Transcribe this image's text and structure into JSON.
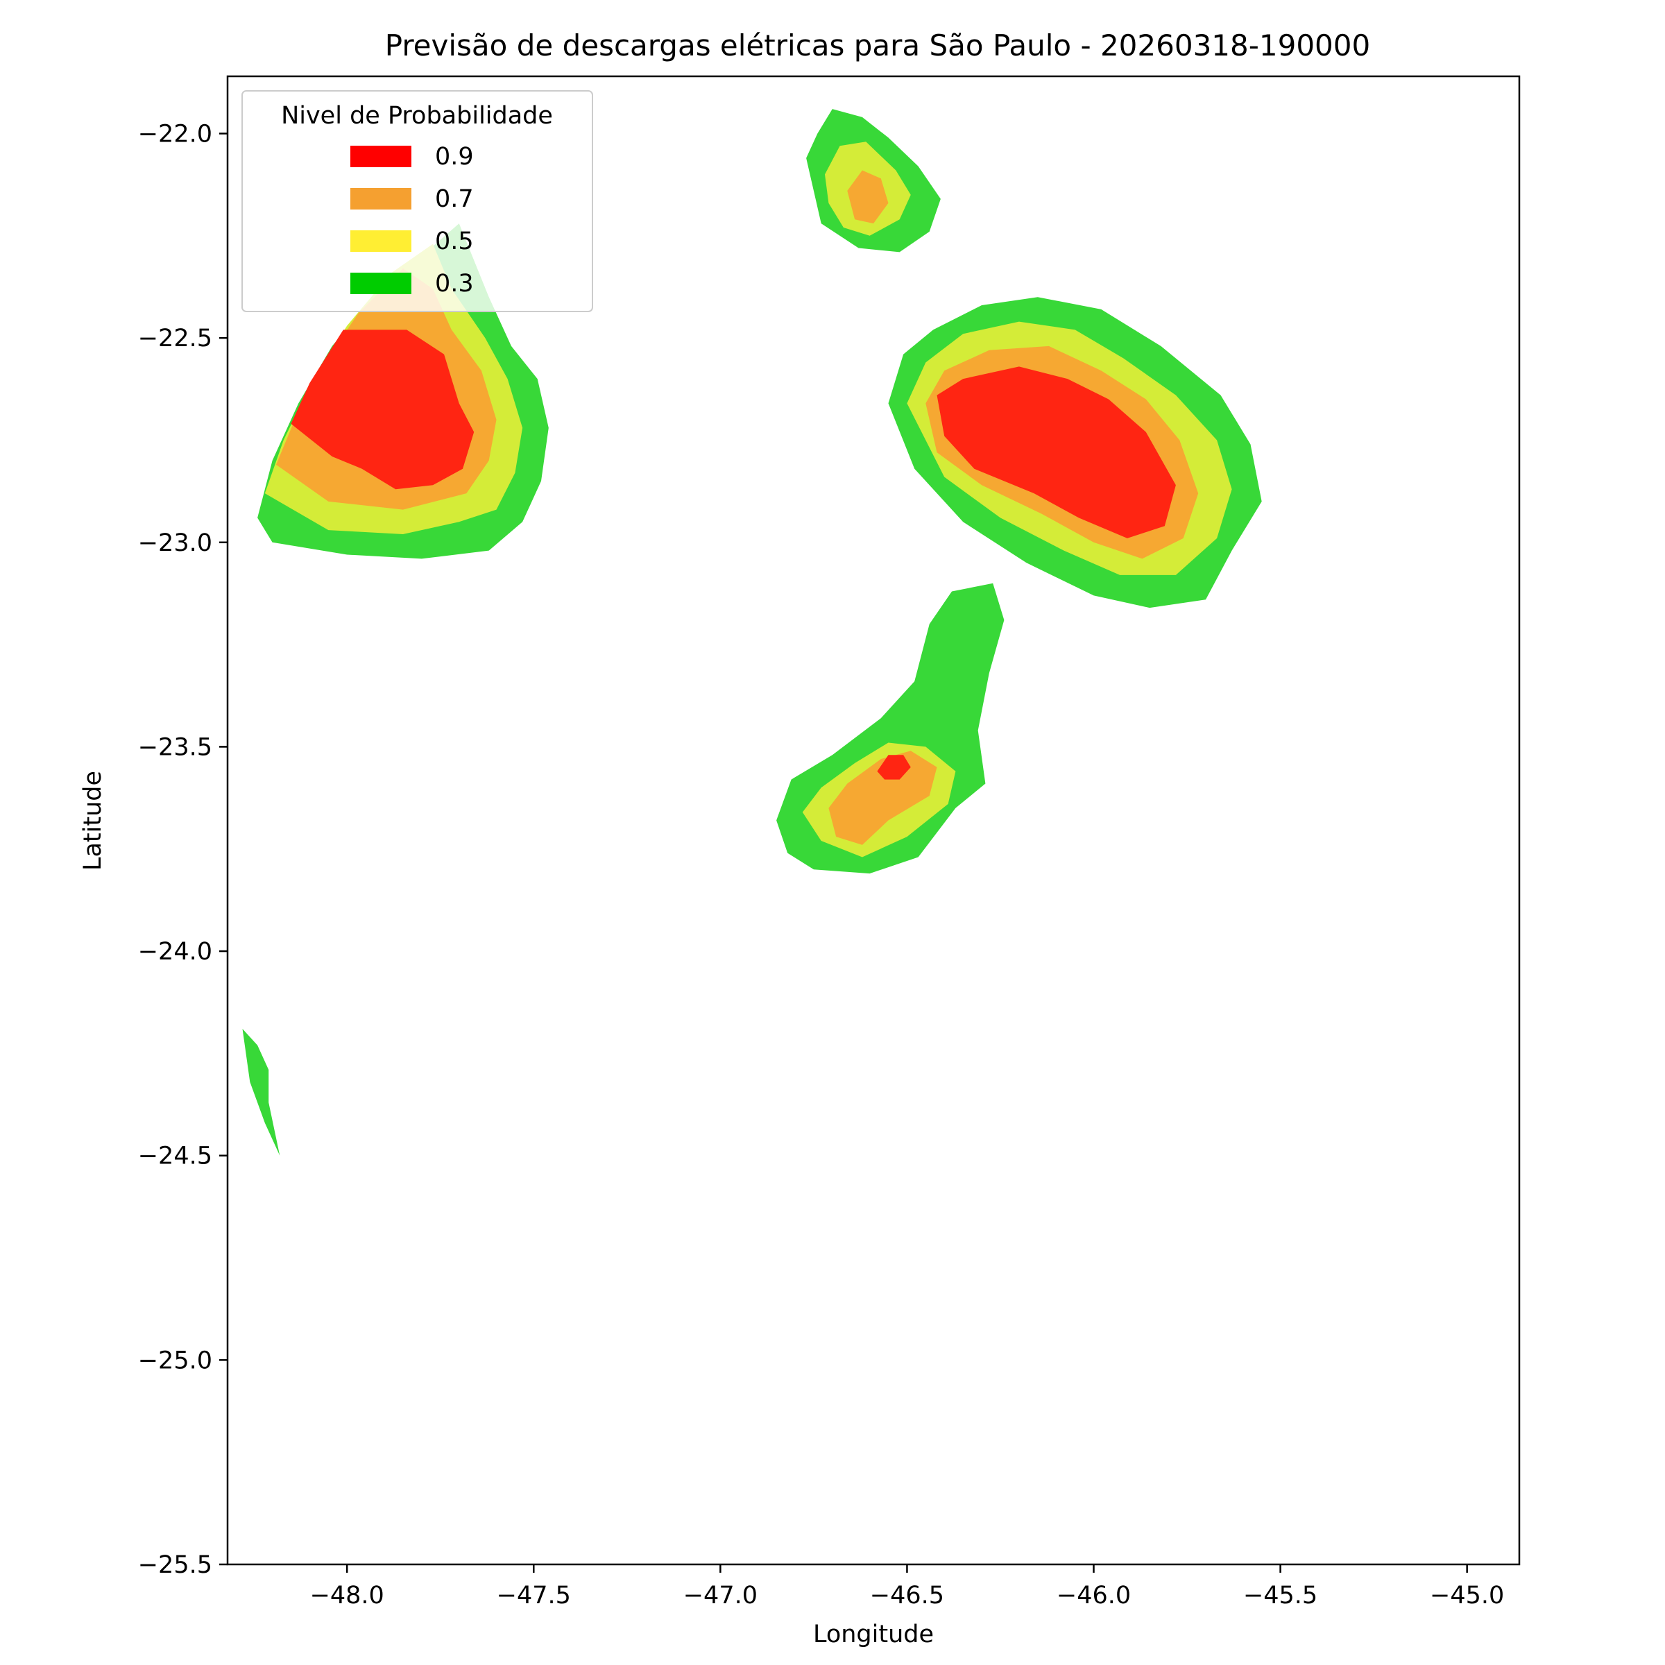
{
  "chart_data": {
    "type": "filled-contour map",
    "title": "Previsão de descargas elétricas para São Paulo - 20260318-190000",
    "xlabel": "Longitude",
    "ylabel": "Latitude",
    "xlim": [
      -48.32,
      -44.86
    ],
    "ylim": [
      -25.5,
      -21.86
    ],
    "xticks": [
      -48.0,
      -47.5,
      -47.0,
      -46.5,
      -46.0,
      -45.5,
      -45.0
    ],
    "xtick_labels": [
      "−48.0",
      "−47.5",
      "−47.0",
      "−46.5",
      "−46.0",
      "−45.5",
      "−45.0"
    ],
    "yticks": [
      -22.0,
      -22.5,
      -23.0,
      -23.5,
      -24.0,
      -24.5,
      -25.0,
      -25.5
    ],
    "ytick_labels": [
      "−22.0",
      "−22.5",
      "−23.0",
      "−23.5",
      "−24.0",
      "−24.5",
      "−25.0",
      "−25.5"
    ],
    "grid": false,
    "legend": {
      "title": "Nivel de Probabilidade",
      "placement": "top-left",
      "entries": [
        {
          "label": "0.9",
          "color": "#ff0000"
        },
        {
          "label": "0.7",
          "color": "#f5a030"
        },
        {
          "label": "0.5",
          "color": "#ffee33"
        },
        {
          "label": "0.3",
          "color": "#00cc00"
        }
      ]
    },
    "fill_colors": {
      "0.3": "#38d838",
      "0.5": "#d4ec38",
      "0.7": "#f6a832",
      "0.9": "#ff2512"
    },
    "regions": [
      {
        "id": "west-cell",
        "levels": [
          {
            "level": 0.3,
            "polygon": [
              [
                -48.24,
                -22.94
              ],
              [
                -48.2,
                -22.8
              ],
              [
                -48.13,
                -22.66
              ],
              [
                -48.04,
                -22.52
              ],
              [
                -47.93,
                -22.4
              ],
              [
                -47.8,
                -22.3
              ],
              [
                -47.7,
                -22.22
              ],
              [
                -47.62,
                -22.4
              ],
              [
                -47.56,
                -22.52
              ],
              [
                -47.49,
                -22.6
              ],
              [
                -47.46,
                -22.72
              ],
              [
                -47.48,
                -22.85
              ],
              [
                -47.53,
                -22.95
              ],
              [
                -47.62,
                -23.02
              ],
              [
                -47.8,
                -23.04
              ],
              [
                -48.0,
                -23.03
              ],
              [
                -48.2,
                -23.0
              ]
            ]
          },
          {
            "level": 0.5,
            "polygon": [
              [
                -48.22,
                -22.88
              ],
              [
                -48.17,
                -22.75
              ],
              [
                -48.09,
                -22.6
              ],
              [
                -48.0,
                -22.47
              ],
              [
                -47.88,
                -22.34
              ],
              [
                -47.77,
                -22.27
              ],
              [
                -47.72,
                -22.38
              ],
              [
                -47.63,
                -22.5
              ],
              [
                -47.57,
                -22.6
              ],
              [
                -47.53,
                -22.72
              ],
              [
                -47.55,
                -22.83
              ],
              [
                -47.6,
                -22.92
              ],
              [
                -47.7,
                -22.95
              ],
              [
                -47.85,
                -22.98
              ],
              [
                -48.05,
                -22.97
              ]
            ]
          },
          {
            "level": 0.7,
            "polygon": [
              [
                -48.19,
                -22.81
              ],
              [
                -48.14,
                -22.7
              ],
              [
                -48.06,
                -22.56
              ],
              [
                -47.97,
                -22.44
              ],
              [
                -47.85,
                -22.33
              ],
              [
                -47.77,
                -22.38
              ],
              [
                -47.72,
                -22.48
              ],
              [
                -47.64,
                -22.58
              ],
              [
                -47.6,
                -22.7
              ],
              [
                -47.62,
                -22.8
              ],
              [
                -47.68,
                -22.88
              ],
              [
                -47.85,
                -22.92
              ],
              [
                -48.05,
                -22.9
              ]
            ]
          },
          {
            "level": 0.9,
            "polygon": [
              [
                -48.15,
                -22.71
              ],
              [
                -48.1,
                -22.61
              ],
              [
                -48.01,
                -22.48
              ],
              [
                -47.84,
                -22.48
              ],
              [
                -47.74,
                -22.54
              ],
              [
                -47.7,
                -22.66
              ],
              [
                -47.66,
                -22.73
              ],
              [
                -47.69,
                -22.82
              ],
              [
                -47.77,
                -22.86
              ],
              [
                -47.87,
                -22.87
              ],
              [
                -47.96,
                -22.82
              ],
              [
                -48.04,
                -22.79
              ]
            ]
          }
        ]
      },
      {
        "id": "north-cell",
        "levels": [
          {
            "level": 0.3,
            "polygon": [
              [
                -46.77,
                -22.06
              ],
              [
                -46.74,
                -22.0
              ],
              [
                -46.7,
                -21.94
              ],
              [
                -46.62,
                -21.96
              ],
              [
                -46.55,
                -22.01
              ],
              [
                -46.47,
                -22.08
              ],
              [
                -46.41,
                -22.16
              ],
              [
                -46.44,
                -22.24
              ],
              [
                -46.52,
                -22.29
              ],
              [
                -46.63,
                -22.28
              ],
              [
                -46.73,
                -22.22
              ],
              [
                -46.75,
                -22.14
              ]
            ]
          },
          {
            "level": 0.5,
            "polygon": [
              [
                -46.72,
                -22.1
              ],
              [
                -46.68,
                -22.03
              ],
              [
                -46.61,
                -22.02
              ],
              [
                -46.53,
                -22.09
              ],
              [
                -46.49,
                -22.15
              ],
              [
                -46.52,
                -22.21
              ],
              [
                -46.6,
                -22.25
              ],
              [
                -46.67,
                -22.23
              ],
              [
                -46.71,
                -22.17
              ]
            ]
          },
          {
            "level": 0.7,
            "polygon": [
              [
                -46.66,
                -22.14
              ],
              [
                -46.62,
                -22.09
              ],
              [
                -46.57,
                -22.11
              ],
              [
                -46.55,
                -22.17
              ],
              [
                -46.59,
                -22.22
              ],
              [
                -46.64,
                -22.21
              ]
            ]
          }
        ]
      },
      {
        "id": "east-cell",
        "levels": [
          {
            "level": 0.3,
            "polygon": [
              [
                -46.55,
                -22.66
              ],
              [
                -46.51,
                -22.54
              ],
              [
                -46.43,
                -22.48
              ],
              [
                -46.3,
                -22.42
              ],
              [
                -46.15,
                -22.4
              ],
              [
                -45.98,
                -22.43
              ],
              [
                -45.82,
                -22.52
              ],
              [
                -45.66,
                -22.64
              ],
              [
                -45.58,
                -22.76
              ],
              [
                -45.55,
                -22.9
              ],
              [
                -45.63,
                -23.02
              ],
              [
                -45.7,
                -23.14
              ],
              [
                -45.85,
                -23.16
              ],
              [
                -46.0,
                -23.13
              ],
              [
                -46.18,
                -23.05
              ],
              [
                -46.35,
                -22.95
              ],
              [
                -46.48,
                -22.82
              ]
            ]
          },
          {
            "level": 0.5,
            "polygon": [
              [
                -46.5,
                -22.66
              ],
              [
                -46.45,
                -22.56
              ],
              [
                -46.35,
                -22.49
              ],
              [
                -46.2,
                -22.46
              ],
              [
                -46.05,
                -22.48
              ],
              [
                -45.92,
                -22.55
              ],
              [
                -45.78,
                -22.64
              ],
              [
                -45.67,
                -22.75
              ],
              [
                -45.63,
                -22.87
              ],
              [
                -45.67,
                -22.99
              ],
              [
                -45.78,
                -23.08
              ],
              [
                -45.93,
                -23.08
              ],
              [
                -46.08,
                -23.02
              ],
              [
                -46.25,
                -22.94
              ],
              [
                -46.4,
                -22.84
              ]
            ]
          },
          {
            "level": 0.7,
            "polygon": [
              [
                -46.45,
                -22.66
              ],
              [
                -46.4,
                -22.58
              ],
              [
                -46.28,
                -22.53
              ],
              [
                -46.12,
                -22.52
              ],
              [
                -45.98,
                -22.58
              ],
              [
                -45.86,
                -22.65
              ],
              [
                -45.77,
                -22.75
              ],
              [
                -45.72,
                -22.88
              ],
              [
                -45.76,
                -22.99
              ],
              [
                -45.87,
                -23.04
              ],
              [
                -46.0,
                -23.0
              ],
              [
                -46.14,
                -22.93
              ],
              [
                -46.3,
                -22.86
              ],
              [
                -46.42,
                -22.78
              ]
            ]
          },
          {
            "level": 0.9,
            "polygon": [
              [
                -46.42,
                -22.64
              ],
              [
                -46.35,
                -22.6
              ],
              [
                -46.2,
                -22.57
              ],
              [
                -46.07,
                -22.6
              ],
              [
                -45.96,
                -22.65
              ],
              [
                -45.86,
                -22.73
              ],
              [
                -45.78,
                -22.86
              ],
              [
                -45.81,
                -22.96
              ],
              [
                -45.91,
                -22.99
              ],
              [
                -46.04,
                -22.94
              ],
              [
                -46.16,
                -22.88
              ],
              [
                -46.32,
                -22.82
              ],
              [
                -46.4,
                -22.74
              ]
            ]
          }
        ]
      },
      {
        "id": "south-cell",
        "levels": [
          {
            "level": 0.3,
            "polygon": [
              [
                -46.85,
                -23.68
              ],
              [
                -46.81,
                -23.58
              ],
              [
                -46.7,
                -23.52
              ],
              [
                -46.57,
                -23.43
              ],
              [
                -46.48,
                -23.34
              ],
              [
                -46.44,
                -23.2
              ],
              [
                -46.38,
                -23.12
              ],
              [
                -46.27,
                -23.1
              ],
              [
                -46.24,
                -23.19
              ],
              [
                -46.28,
                -23.32
              ],
              [
                -46.31,
                -23.46
              ],
              [
                -46.29,
                -23.59
              ],
              [
                -46.37,
                -23.65
              ],
              [
                -46.47,
                -23.77
              ],
              [
                -46.6,
                -23.81
              ],
              [
                -46.75,
                -23.8
              ],
              [
                -46.82,
                -23.76
              ]
            ]
          },
          {
            "level": 0.5,
            "polygon": [
              [
                -46.78,
                -23.66
              ],
              [
                -46.73,
                -23.6
              ],
              [
                -46.64,
                -23.54
              ],
              [
                -46.55,
                -23.49
              ],
              [
                -46.45,
                -23.5
              ],
              [
                -46.37,
                -23.56
              ],
              [
                -46.39,
                -23.64
              ],
              [
                -46.5,
                -23.72
              ],
              [
                -46.62,
                -23.77
              ],
              [
                -46.73,
                -23.73
              ]
            ]
          },
          {
            "level": 0.7,
            "polygon": [
              [
                -46.71,
                -23.65
              ],
              [
                -46.66,
                -23.59
              ],
              [
                -46.57,
                -23.53
              ],
              [
                -46.49,
                -23.51
              ],
              [
                -46.42,
                -23.55
              ],
              [
                -46.44,
                -23.62
              ],
              [
                -46.55,
                -23.68
              ],
              [
                -46.62,
                -23.74
              ],
              [
                -46.69,
                -23.72
              ]
            ]
          },
          {
            "level": 0.9,
            "polygon": [
              [
                -46.58,
                -23.56
              ],
              [
                -46.55,
                -23.52
              ],
              [
                -46.51,
                -23.52
              ],
              [
                -46.49,
                -23.55
              ],
              [
                -46.52,
                -23.58
              ],
              [
                -46.56,
                -23.58
              ]
            ]
          }
        ]
      },
      {
        "id": "southwest-sliver",
        "levels": [
          {
            "level": 0.3,
            "polygon": [
              [
                -48.28,
                -24.19
              ],
              [
                -48.24,
                -24.23
              ],
              [
                -48.21,
                -24.29
              ],
              [
                -48.21,
                -24.37
              ],
              [
                -48.18,
                -24.5
              ],
              [
                -48.22,
                -24.42
              ],
              [
                -48.26,
                -24.32
              ]
            ]
          }
        ]
      }
    ]
  }
}
